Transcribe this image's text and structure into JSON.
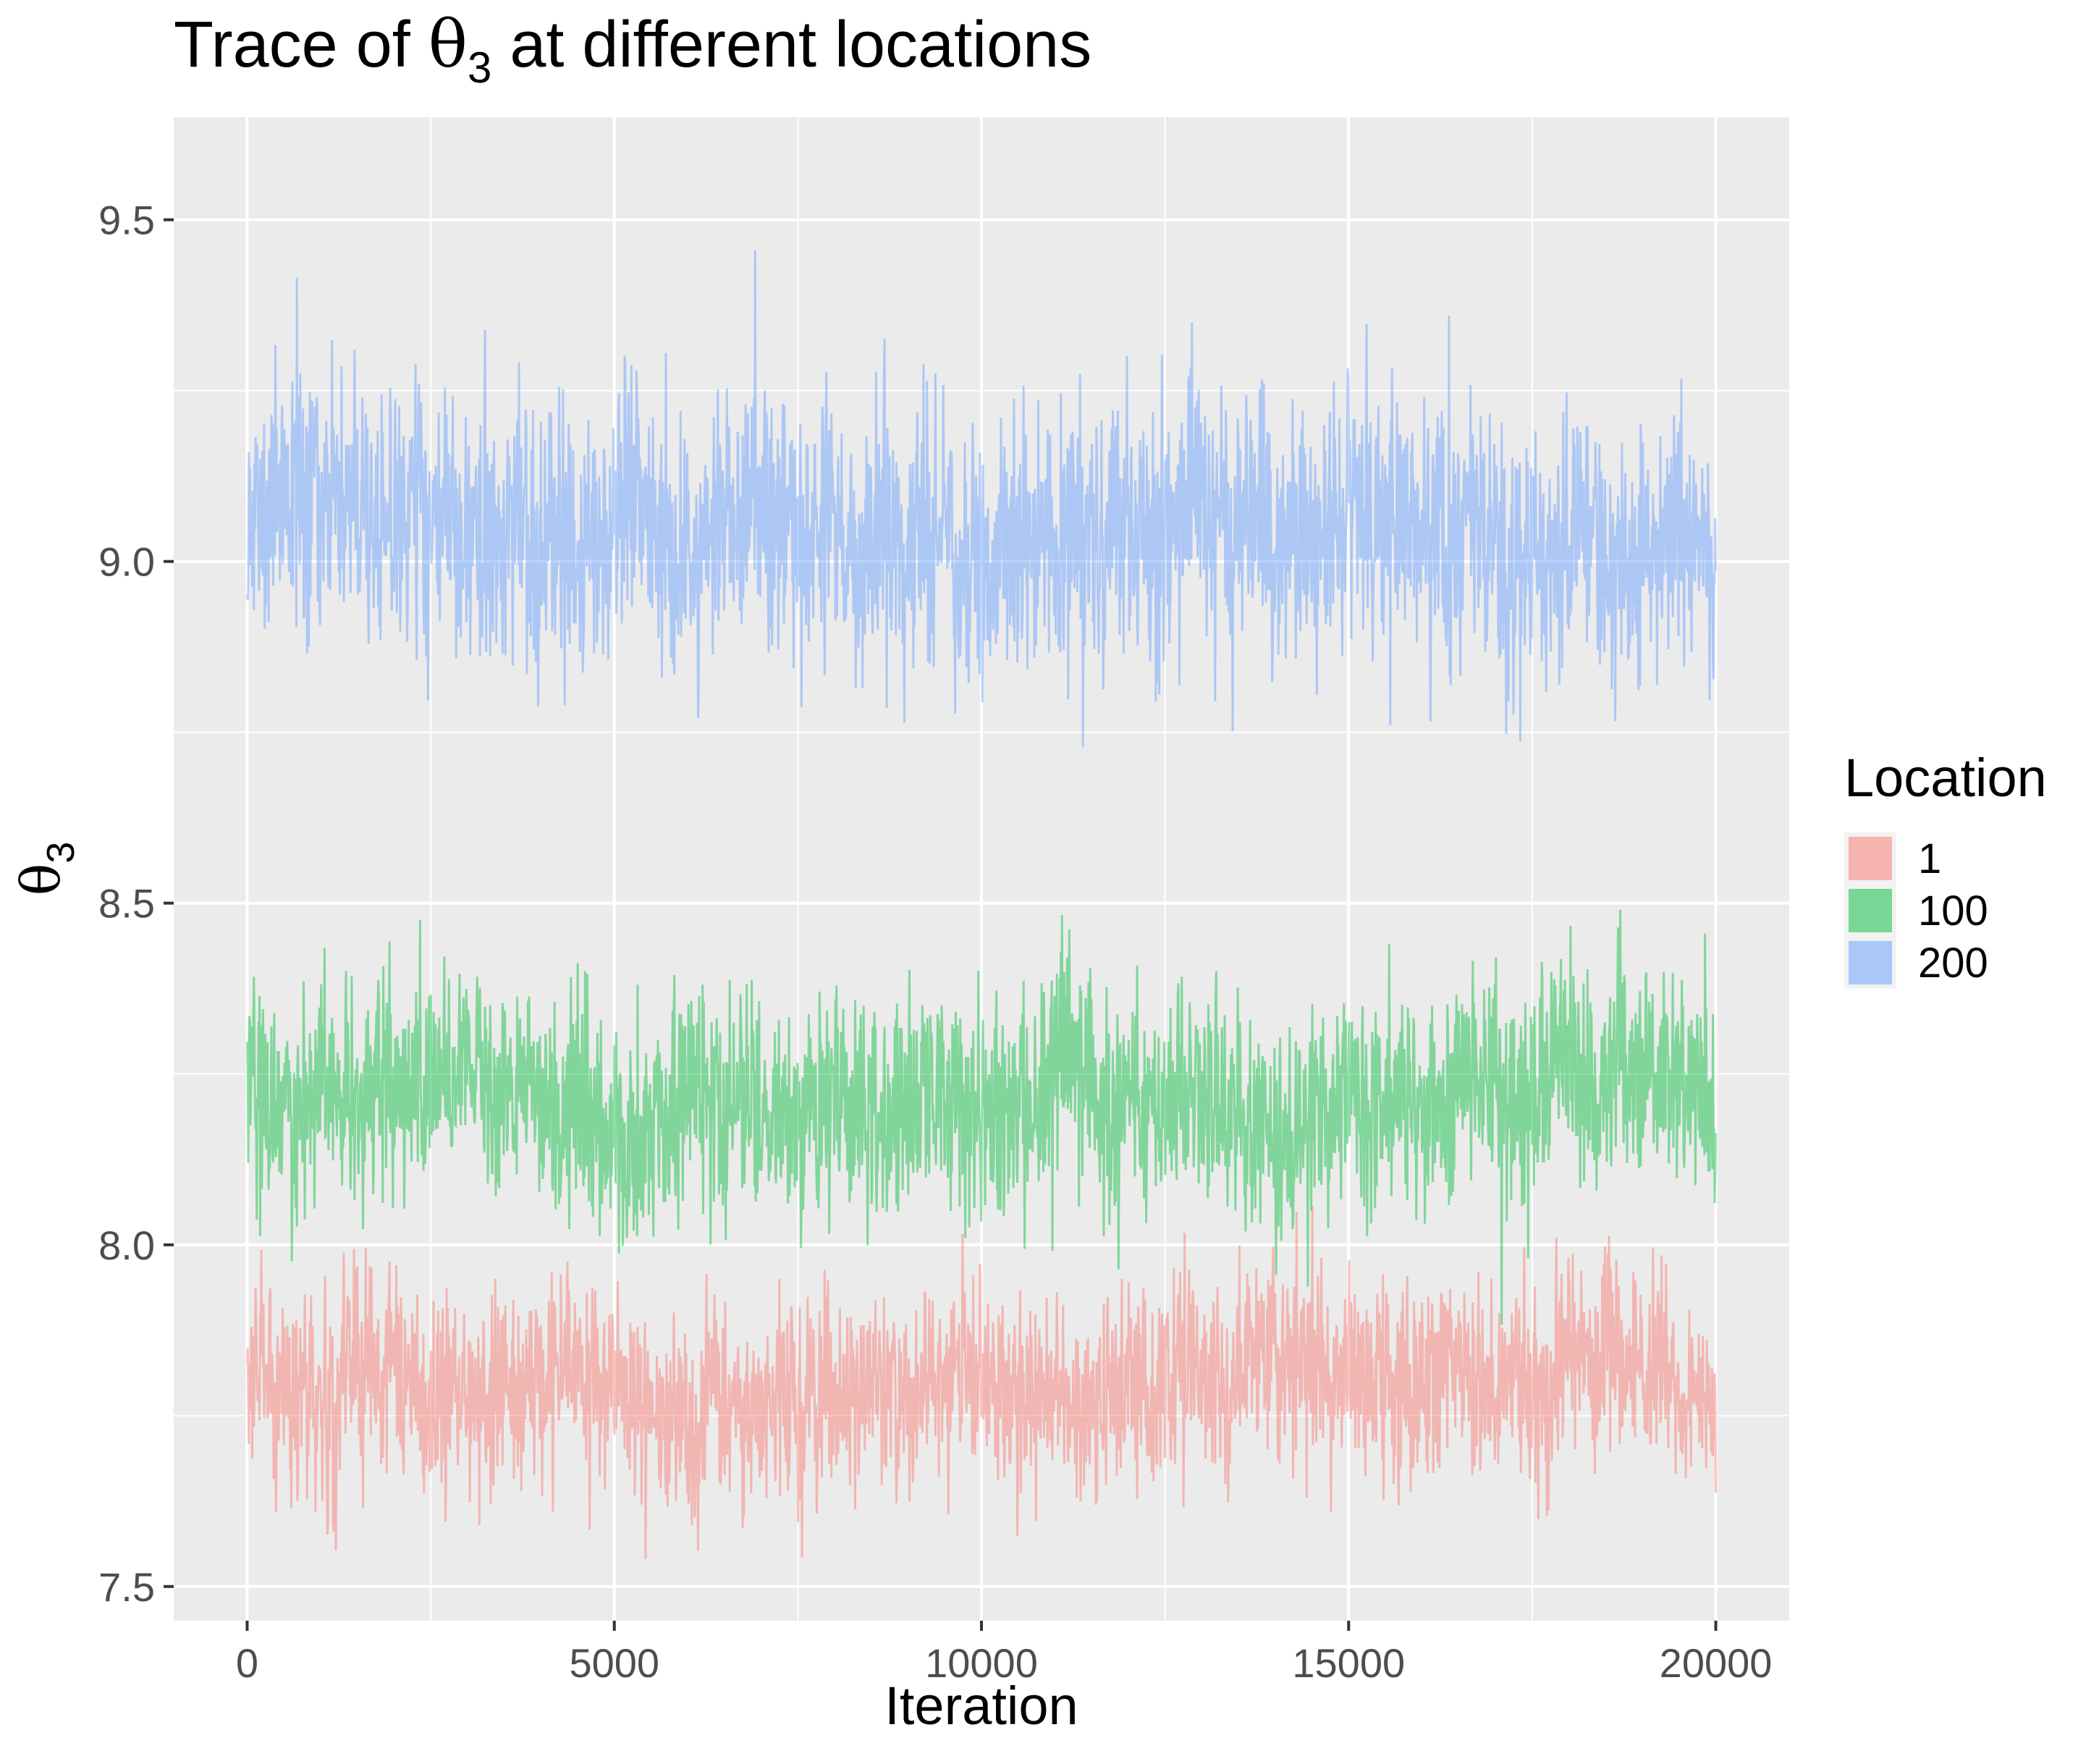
{
  "chart_data": {
    "type": "line",
    "title": {
      "prefix": "Trace of ",
      "symbol": "θ",
      "subscript": "3",
      "suffix": " at different locations"
    },
    "xlabel": "Iteration",
    "ylabel": {
      "symbol": "θ",
      "subscript": "3"
    },
    "xlim": [
      -1000,
      21000
    ],
    "ylim": [
      7.45,
      9.65
    ],
    "x_ticks": [
      0,
      5000,
      10000,
      15000,
      20000
    ],
    "x_tick_labels": [
      "0",
      "5000",
      "10000",
      "15000",
      "20000"
    ],
    "y_ticks": [
      7.5,
      8.0,
      8.5,
      9.0,
      9.5
    ],
    "y_tick_labels": [
      "7.5",
      "8.0",
      "8.5",
      "9.0",
      "9.5"
    ],
    "grid": true,
    "legend": {
      "title": "Location",
      "position": "right"
    },
    "n_iterations": 20000,
    "series": [
      {
        "name": "1",
        "color": "#F8766D",
        "center": 7.8,
        "spread": 0.075,
        "min": 7.54,
        "max": 8.07
      },
      {
        "name": "100",
        "color": "#00BA38",
        "center": 8.22,
        "spread": 0.085,
        "min": 7.77,
        "max": 8.65
      },
      {
        "name": "200",
        "color": "#619CFF",
        "center": 9.04,
        "spread": 0.1,
        "min": 8.56,
        "max": 9.55
      }
    ]
  }
}
